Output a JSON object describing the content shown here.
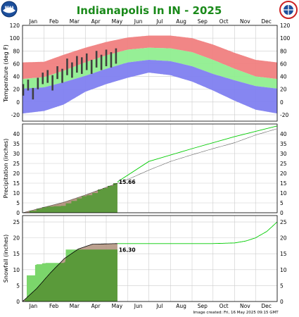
{
  "title": "Indianapolis In IN - 2025",
  "footer": "Image created: Fri, 16 May 2025 09:15 GMT",
  "logos": {
    "left": "NOAA",
    "right": "NATIONAL WEATHER SERVICE"
  },
  "months": [
    "Jan",
    "Feb",
    "Mar",
    "Apr",
    "May",
    "Jun",
    "Jul",
    "Aug",
    "Sep",
    "Oct",
    "Nov",
    "Dec"
  ],
  "colors": {
    "record_range": "#f08080",
    "normal_range": "#90ee90",
    "record_low_range": "#8080f0",
    "observed": "#404040",
    "normal_line": "#00cc00",
    "observed_fill": "#5a9a3a",
    "normal_fill": "#b49682",
    "grid": "#cccccc"
  },
  "chart_data": [
    {
      "type": "area",
      "name": "temperature",
      "ylabel": "Temperature (deg F)",
      "ylim": [
        -30,
        120
      ],
      "yticks": [
        -20,
        0,
        20,
        40,
        60,
        80,
        100,
        120
      ],
      "x_days": [
        0,
        31,
        59,
        90,
        120,
        151,
        181,
        212,
        243,
        273,
        304,
        334,
        365
      ],
      "record_high": [
        62,
        63,
        74,
        85,
        94,
        101,
        104,
        104,
        100,
        90,
        77,
        66,
        62
      ],
      "normal_high": [
        36,
        39,
        49,
        62,
        73,
        82,
        85,
        84,
        78,
        66,
        52,
        40,
        36
      ],
      "normal_low": [
        21,
        23,
        31,
        41,
        52,
        62,
        66,
        64,
        56,
        44,
        34,
        25,
        21
      ],
      "record_low": [
        -18,
        -14,
        -4,
        16,
        28,
        38,
        46,
        42,
        32,
        18,
        2,
        -12,
        -18
      ],
      "observed_x": [
        1,
        8,
        15,
        22,
        29,
        36,
        43,
        50,
        57,
        64,
        71,
        78,
        85,
        92,
        99,
        106,
        113,
        120,
        127,
        134
      ],
      "observed_high": [
        28,
        35,
        22,
        38,
        46,
        50,
        42,
        56,
        52,
        68,
        62,
        72,
        70,
        76,
        66,
        80,
        74,
        82,
        78,
        84
      ],
      "observed_low": [
        10,
        18,
        4,
        20,
        28,
        30,
        18,
        36,
        30,
        42,
        38,
        46,
        44,
        50,
        44,
        54,
        50,
        56,
        54,
        60
      ]
    },
    {
      "type": "area",
      "name": "precipitation",
      "ylabel": "Precipitation (inches)",
      "ylim": [
        0,
        45
      ],
      "yticks": [
        0,
        5,
        10,
        15,
        20,
        25,
        30,
        35,
        40
      ],
      "observed_total": "15.66",
      "normal_x": [
        0,
        31,
        59,
        90,
        120,
        151,
        181,
        212,
        243,
        273,
        304,
        334,
        365
      ],
      "normal_cum": [
        0,
        2.8,
        5.3,
        9.0,
        12.9,
        16.9,
        21.6,
        26.0,
        29.4,
        32.5,
        35.5,
        39.4,
        42.6
      ],
      "observed_x": [
        0,
        10,
        20,
        28,
        35,
        45,
        55,
        62,
        70,
        78,
        85,
        92,
        100,
        108,
        115,
        122,
        130,
        136
      ],
      "observed_cum": [
        0,
        1.0,
        2.0,
        2.8,
        3.1,
        3.3,
        3.5,
        4.8,
        6.0,
        7.3,
        8.4,
        8.9,
        10.0,
        11.8,
        12.5,
        13.6,
        15.0,
        15.66
      ],
      "forecast_x": [
        136,
        181,
        243,
        304,
        365
      ],
      "forecast_cum": [
        15.66,
        26.0,
        32.5,
        38.6,
        44.0
      ]
    },
    {
      "type": "area",
      "name": "snowfall",
      "ylabel": "Snowfall (inches)",
      "ylim": [
        0,
        27
      ],
      "yticks": [
        0,
        5,
        10,
        15,
        20,
        25
      ],
      "observed_total": "16.30",
      "normal_x": [
        0,
        20,
        40,
        60,
        80,
        100,
        136,
        181,
        243,
        273,
        304,
        320,
        334,
        350,
        365
      ],
      "normal_cum": [
        0,
        4.0,
        9.0,
        13.5,
        16.5,
        18.0,
        18.2,
        18.2,
        18.2,
        18.2,
        18.4,
        19.0,
        20.0,
        22.0,
        25.0
      ],
      "observed_x": [
        0,
        4,
        6,
        16,
        18,
        20,
        28,
        33,
        35,
        60,
        62,
        136
      ],
      "observed_cum": [
        0,
        1.0,
        8.2,
        8.2,
        11.5,
        11.7,
        12.0,
        12.1,
        12.1,
        12.3,
        16.3,
        16.3
      ]
    }
  ]
}
